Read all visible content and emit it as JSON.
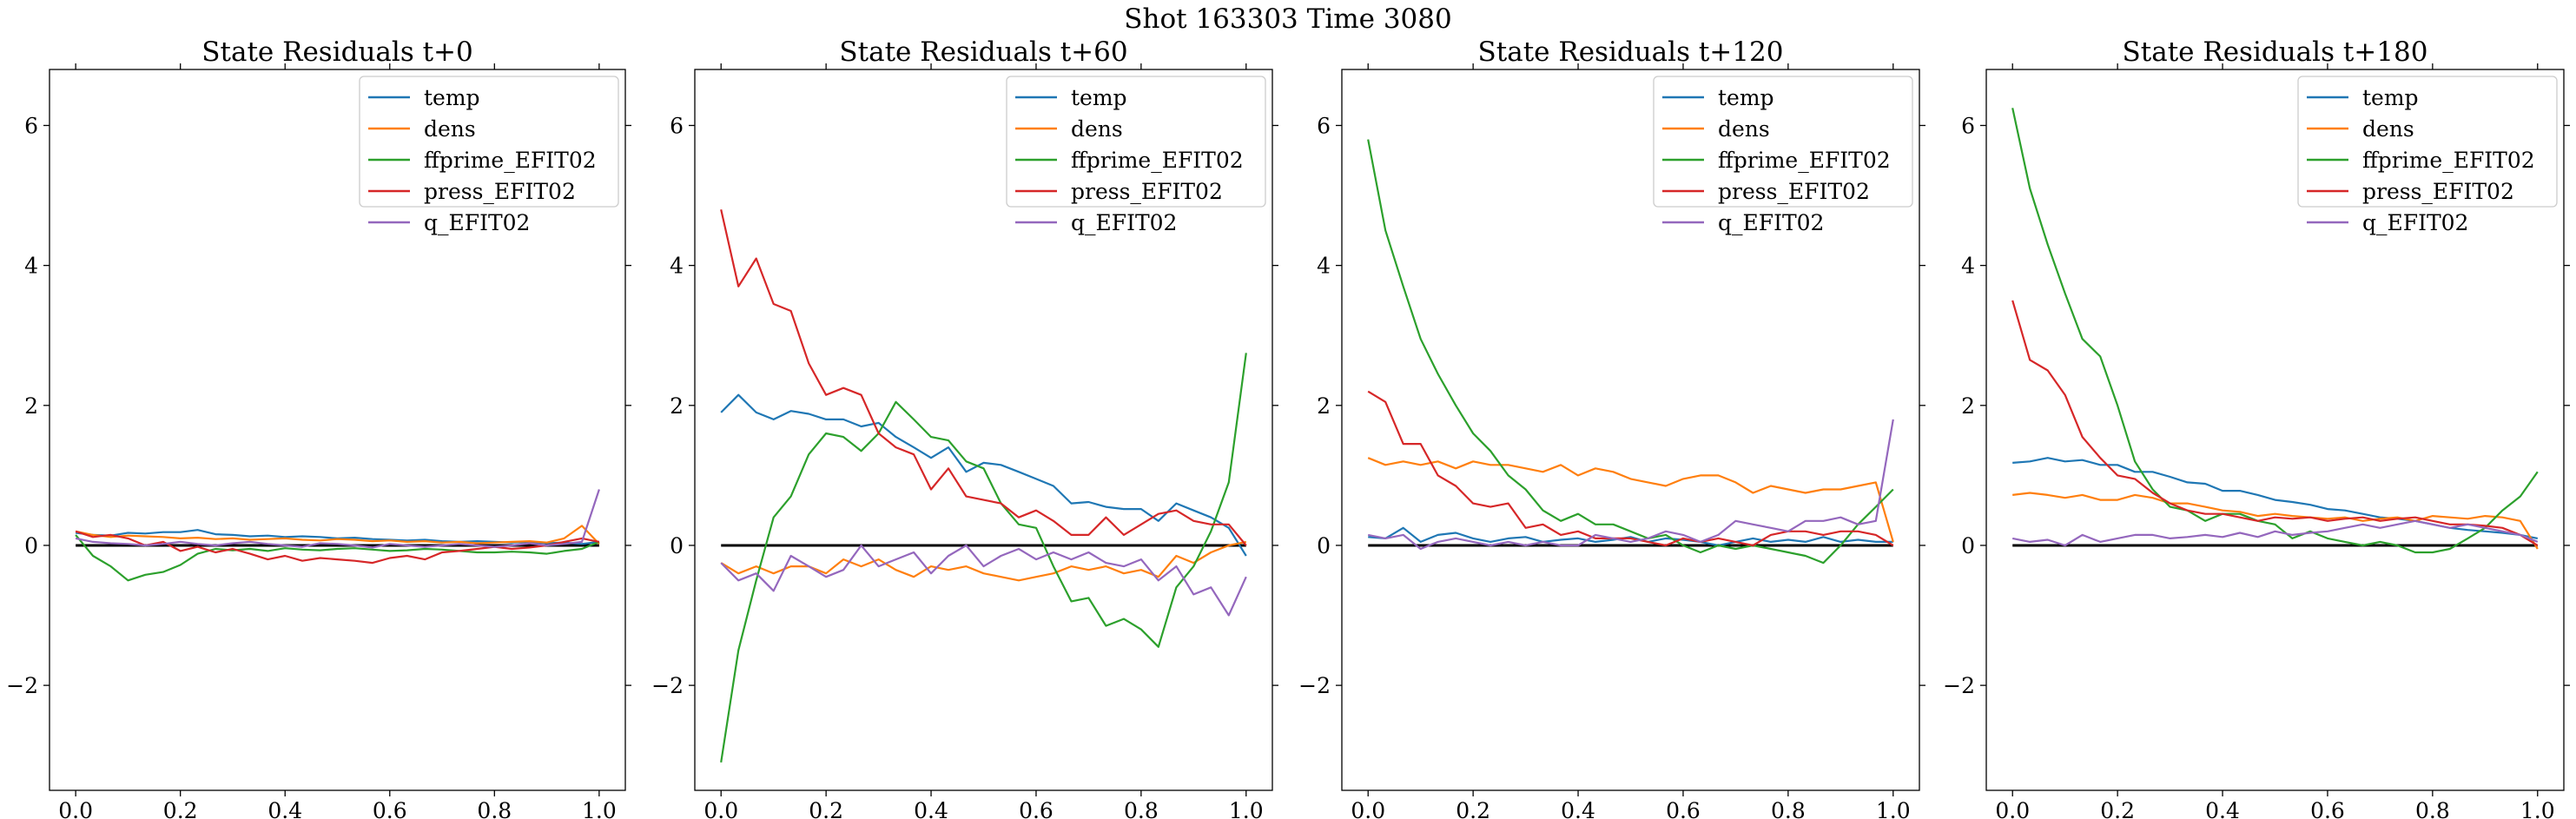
{
  "figure": {
    "suptitle": "Shot 163303   Time 3080"
  },
  "chart_data": [
    {
      "type": "line",
      "title": "State Residuals t+0",
      "xlabel": "",
      "ylabel": "",
      "xlim": [
        -0.05,
        1.05
      ],
      "ylim": [
        -3.5,
        6.8
      ],
      "xticks": [
        0.0,
        0.2,
        0.4,
        0.6,
        0.8,
        1.0
      ],
      "xtick_labels": [
        "0.0",
        "0.2",
        "0.4",
        "0.6",
        "0.8",
        "1.0"
      ],
      "yticks": [
        -2,
        0,
        2,
        4,
        6
      ],
      "ytick_labels": [
        "−2",
        "0",
        "2",
        "4",
        "6"
      ],
      "grid": false,
      "legend": "top-right",
      "zero_line": true,
      "x": [
        0.0,
        0.033,
        0.067,
        0.1,
        0.133,
        0.167,
        0.2,
        0.233,
        0.267,
        0.3,
        0.333,
        0.367,
        0.4,
        0.433,
        0.467,
        0.5,
        0.533,
        0.567,
        0.6,
        0.633,
        0.667,
        0.7,
        0.733,
        0.767,
        0.8,
        0.833,
        0.867,
        0.9,
        0.933,
        0.967,
        1.0
      ],
      "series": [
        {
          "name": "temp",
          "color": "#1f77b4",
          "values": [
            0.18,
            0.15,
            0.14,
            0.18,
            0.17,
            0.19,
            0.19,
            0.22,
            0.16,
            0.15,
            0.13,
            0.14,
            0.12,
            0.13,
            0.12,
            0.1,
            0.11,
            0.09,
            0.08,
            0.07,
            0.08,
            0.06,
            0.05,
            0.06,
            0.05,
            0.04,
            0.05,
            0.03,
            0.04,
            0.02,
            0.05
          ]
        },
        {
          "name": "dens",
          "color": "#ff7f0e",
          "values": [
            0.2,
            0.15,
            0.12,
            0.14,
            0.13,
            0.12,
            0.1,
            0.11,
            0.09,
            0.1,
            0.08,
            0.09,
            0.1,
            0.08,
            0.07,
            0.09,
            0.08,
            0.06,
            0.07,
            0.05,
            0.06,
            0.04,
            0.05,
            0.03,
            0.04,
            0.05,
            0.06,
            0.04,
            0.1,
            0.28,
            0.02
          ]
        },
        {
          "name": "ffprime_EFIT02",
          "color": "#2ca02c",
          "values": [
            0.15,
            -0.15,
            -0.3,
            -0.5,
            -0.42,
            -0.38,
            -0.28,
            -0.12,
            -0.05,
            -0.07,
            -0.05,
            -0.08,
            -0.04,
            -0.06,
            -0.07,
            -0.05,
            -0.04,
            -0.06,
            -0.08,
            -0.07,
            -0.05,
            -0.06,
            -0.08,
            -0.1,
            -0.1,
            -0.09,
            -0.1,
            -0.12,
            -0.08,
            -0.05,
            0.05
          ]
        },
        {
          "name": "press_EFIT02",
          "color": "#d62728",
          "values": [
            0.2,
            0.12,
            0.15,
            0.1,
            0.0,
            0.05,
            -0.08,
            -0.02,
            -0.1,
            -0.05,
            -0.12,
            -0.2,
            -0.15,
            -0.22,
            -0.18,
            -0.2,
            -0.22,
            -0.25,
            -0.18,
            -0.15,
            -0.2,
            -0.1,
            -0.08,
            -0.05,
            -0.02,
            -0.05,
            -0.03,
            0.0,
            0.05,
            0.1,
            0.05
          ]
        },
        {
          "name": "q_EFIT02",
          "color": "#9467bd",
          "values": [
            0.1,
            0.05,
            0.03,
            0.02,
            0.0,
            0.02,
            0.05,
            0.02,
            0.0,
            0.03,
            0.05,
            0.02,
            0.0,
            -0.02,
            0.03,
            0.02,
            0.0,
            -0.03,
            0.02,
            0.0,
            -0.02,
            0.0,
            0.02,
            0.0,
            -0.02,
            0.0,
            0.03,
            0.0,
            0.02,
            0.05,
            0.8
          ]
        }
      ]
    },
    {
      "type": "line",
      "title": "State Residuals t+60",
      "xlabel": "",
      "ylabel": "",
      "xlim": [
        -0.05,
        1.05
      ],
      "ylim": [
        -3.5,
        6.8
      ],
      "xticks": [
        0.0,
        0.2,
        0.4,
        0.6,
        0.8,
        1.0
      ],
      "xtick_labels": [
        "0.0",
        "0.2",
        "0.4",
        "0.6",
        "0.8",
        "1.0"
      ],
      "yticks": [
        -2,
        0,
        2,
        4,
        6
      ],
      "ytick_labels": [
        "−2",
        "0",
        "2",
        "4",
        "6"
      ],
      "grid": false,
      "legend": "top-right",
      "zero_line": true,
      "x": [
        0.0,
        0.033,
        0.067,
        0.1,
        0.133,
        0.167,
        0.2,
        0.233,
        0.267,
        0.3,
        0.333,
        0.367,
        0.4,
        0.433,
        0.467,
        0.5,
        0.533,
        0.567,
        0.6,
        0.633,
        0.667,
        0.7,
        0.733,
        0.767,
        0.8,
        0.833,
        0.867,
        0.9,
        0.933,
        0.967,
        1.0
      ],
      "series": [
        {
          "name": "temp",
          "color": "#1f77b4",
          "values": [
            1.9,
            2.15,
            1.9,
            1.8,
            1.92,
            1.88,
            1.8,
            1.8,
            1.7,
            1.75,
            1.55,
            1.4,
            1.25,
            1.4,
            1.05,
            1.18,
            1.15,
            1.05,
            0.95,
            0.85,
            0.6,
            0.62,
            0.55,
            0.52,
            0.52,
            0.35,
            0.6,
            0.5,
            0.4,
            0.25,
            -0.15
          ]
        },
        {
          "name": "dens",
          "color": "#ff7f0e",
          "values": [
            -0.25,
            -0.4,
            -0.3,
            -0.4,
            -0.3,
            -0.3,
            -0.4,
            -0.2,
            -0.3,
            -0.2,
            -0.35,
            -0.45,
            -0.3,
            -0.35,
            -0.3,
            -0.4,
            -0.45,
            -0.5,
            -0.45,
            -0.4,
            -0.3,
            -0.35,
            -0.3,
            -0.4,
            -0.35,
            -0.45,
            -0.15,
            -0.25,
            -0.1,
            0.0,
            0.05
          ]
        },
        {
          "name": "ffprime_EFIT02",
          "color": "#2ca02c",
          "values": [
            -3.1,
            -1.5,
            -0.5,
            0.4,
            0.7,
            1.3,
            1.6,
            1.55,
            1.35,
            1.6,
            2.05,
            1.8,
            1.55,
            1.5,
            1.2,
            1.1,
            0.6,
            0.3,
            0.25,
            -0.3,
            -0.8,
            -0.75,
            -1.15,
            -1.05,
            -1.2,
            -1.45,
            -0.6,
            -0.3,
            0.2,
            0.9,
            2.75
          ]
        },
        {
          "name": "press_EFIT02",
          "color": "#d62728",
          "values": [
            4.8,
            3.7,
            4.1,
            3.45,
            3.35,
            2.6,
            2.15,
            2.25,
            2.15,
            1.6,
            1.4,
            1.3,
            0.8,
            1.1,
            0.7,
            0.65,
            0.6,
            0.4,
            0.5,
            0.35,
            0.15,
            0.15,
            0.4,
            0.15,
            0.3,
            0.45,
            0.5,
            0.35,
            0.3,
            0.3,
            0.0
          ]
        },
        {
          "name": "q_EFIT02",
          "color": "#9467bd",
          "values": [
            -0.25,
            -0.5,
            -0.4,
            -0.65,
            -0.15,
            -0.3,
            -0.45,
            -0.35,
            0.0,
            -0.3,
            -0.2,
            -0.1,
            -0.4,
            -0.15,
            0.0,
            -0.3,
            -0.15,
            -0.05,
            -0.2,
            -0.1,
            -0.2,
            -0.1,
            -0.25,
            -0.3,
            -0.2,
            -0.5,
            -0.3,
            -0.7,
            -0.6,
            -1.0,
            -0.45
          ]
        }
      ]
    },
    {
      "type": "line",
      "title": "State Residuals t+120",
      "xlabel": "",
      "ylabel": "",
      "xlim": [
        -0.05,
        1.05
      ],
      "ylim": [
        -3.5,
        6.8
      ],
      "xticks": [
        0.0,
        0.2,
        0.4,
        0.6,
        0.8,
        1.0
      ],
      "xtick_labels": [
        "0.0",
        "0.2",
        "0.4",
        "0.6",
        "0.8",
        "1.0"
      ],
      "yticks": [
        -2,
        0,
        2,
        4,
        6
      ],
      "ytick_labels": [
        "−2",
        "0",
        "2",
        "4",
        "6"
      ],
      "grid": false,
      "legend": "top-right",
      "zero_line": true,
      "x": [
        0.0,
        0.033,
        0.067,
        0.1,
        0.133,
        0.167,
        0.2,
        0.233,
        0.267,
        0.3,
        0.333,
        0.367,
        0.4,
        0.433,
        0.467,
        0.5,
        0.533,
        0.567,
        0.6,
        0.633,
        0.667,
        0.7,
        0.733,
        0.767,
        0.8,
        0.833,
        0.867,
        0.9,
        0.933,
        0.967,
        1.0
      ],
      "series": [
        {
          "name": "temp",
          "color": "#1f77b4",
          "values": [
            0.12,
            0.1,
            0.25,
            0.05,
            0.15,
            0.18,
            0.1,
            0.05,
            0.1,
            0.12,
            0.05,
            0.08,
            0.1,
            0.05,
            0.08,
            0.12,
            0.05,
            0.1,
            0.08,
            0.05,
            0.0,
            0.05,
            0.1,
            0.05,
            0.08,
            0.05,
            0.12,
            0.05,
            0.08,
            0.05,
            0.05
          ]
        },
        {
          "name": "dens",
          "color": "#ff7f0e",
          "values": [
            1.25,
            1.15,
            1.2,
            1.15,
            1.2,
            1.1,
            1.2,
            1.15,
            1.15,
            1.1,
            1.05,
            1.15,
            1.0,
            1.1,
            1.05,
            0.95,
            0.9,
            0.85,
            0.95,
            1.0,
            1.0,
            0.9,
            0.75,
            0.85,
            0.8,
            0.75,
            0.8,
            0.8,
            0.85,
            0.9,
            0.05
          ]
        },
        {
          "name": "ffprime_EFIT02",
          "color": "#2ca02c",
          "values": [
            5.8,
            4.5,
            3.7,
            2.95,
            2.45,
            2.0,
            1.6,
            1.35,
            1.0,
            0.8,
            0.5,
            0.35,
            0.45,
            0.3,
            0.3,
            0.2,
            0.1,
            0.15,
            0.0,
            -0.1,
            0.0,
            -0.05,
            0.0,
            -0.05,
            -0.1,
            -0.15,
            -0.25,
            0.0,
            0.3,
            0.55,
            0.8
          ]
        },
        {
          "name": "press_EFIT02",
          "color": "#d62728",
          "values": [
            2.2,
            2.05,
            1.45,
            1.45,
            1.0,
            0.85,
            0.6,
            0.55,
            0.6,
            0.25,
            0.3,
            0.15,
            0.2,
            0.1,
            0.1,
            0.1,
            0.05,
            0.0,
            0.1,
            0.05,
            0.1,
            0.05,
            0.0,
            0.15,
            0.2,
            0.2,
            0.15,
            0.2,
            0.2,
            0.15,
            0.0
          ]
        },
        {
          "name": "q_EFIT02",
          "color": "#9467bd",
          "values": [
            0.15,
            0.1,
            0.15,
            -0.05,
            0.05,
            0.1,
            0.05,
            0.0,
            0.05,
            0.0,
            0.05,
            0.0,
            0.0,
            0.15,
            0.1,
            0.05,
            0.1,
            0.2,
            0.15,
            0.05,
            0.15,
            0.35,
            0.3,
            0.25,
            0.2,
            0.35,
            0.35,
            0.4,
            0.3,
            0.35,
            1.8
          ]
        }
      ]
    },
    {
      "type": "line",
      "title": "State Residuals t+180",
      "xlabel": "",
      "ylabel": "",
      "xlim": [
        -0.05,
        1.05
      ],
      "ylim": [
        -3.5,
        6.8
      ],
      "xticks": [
        0.0,
        0.2,
        0.4,
        0.6,
        0.8,
        1.0
      ],
      "xtick_labels": [
        "0.0",
        "0.2",
        "0.4",
        "0.6",
        "0.8",
        "1.0"
      ],
      "yticks": [
        -2,
        0,
        2,
        4,
        6
      ],
      "ytick_labels": [
        "−2",
        "0",
        "2",
        "4",
        "6"
      ],
      "grid": false,
      "legend": "top-right",
      "zero_line": true,
      "x": [
        0.0,
        0.033,
        0.067,
        0.1,
        0.133,
        0.167,
        0.2,
        0.233,
        0.267,
        0.3,
        0.333,
        0.367,
        0.4,
        0.433,
        0.467,
        0.5,
        0.533,
        0.567,
        0.6,
        0.633,
        0.667,
        0.7,
        0.733,
        0.767,
        0.8,
        0.833,
        0.867,
        0.9,
        0.933,
        0.967,
        1.0
      ],
      "series": [
        {
          "name": "temp",
          "color": "#1f77b4",
          "values": [
            1.18,
            1.2,
            1.25,
            1.2,
            1.22,
            1.15,
            1.15,
            1.05,
            1.05,
            0.98,
            0.9,
            0.88,
            0.78,
            0.78,
            0.72,
            0.65,
            0.62,
            0.58,
            0.52,
            0.5,
            0.45,
            0.4,
            0.38,
            0.35,
            0.3,
            0.25,
            0.22,
            0.2,
            0.18,
            0.15,
            0.1
          ]
        },
        {
          "name": "dens",
          "color": "#ff7f0e",
          "values": [
            0.72,
            0.75,
            0.72,
            0.68,
            0.72,
            0.65,
            0.65,
            0.72,
            0.68,
            0.6,
            0.6,
            0.55,
            0.5,
            0.48,
            0.42,
            0.45,
            0.42,
            0.4,
            0.38,
            0.4,
            0.35,
            0.38,
            0.4,
            0.35,
            0.42,
            0.4,
            0.38,
            0.42,
            0.4,
            0.35,
            -0.05
          ]
        },
        {
          "name": "ffprime_EFIT02",
          "color": "#2ca02c",
          "values": [
            6.25,
            5.1,
            4.3,
            3.6,
            2.95,
            2.7,
            2.0,
            1.2,
            0.8,
            0.55,
            0.5,
            0.35,
            0.45,
            0.45,
            0.35,
            0.3,
            0.1,
            0.2,
            0.1,
            0.05,
            0.0,
            0.05,
            0.0,
            -0.1,
            -0.1,
            -0.05,
            0.1,
            0.25,
            0.5,
            0.7,
            1.05
          ]
        },
        {
          "name": "press_EFIT02",
          "color": "#d62728",
          "values": [
            3.5,
            2.65,
            2.5,
            2.15,
            1.55,
            1.25,
            1.0,
            0.95,
            0.75,
            0.6,
            0.5,
            0.45,
            0.45,
            0.4,
            0.35,
            0.4,
            0.38,
            0.4,
            0.35,
            0.38,
            0.4,
            0.35,
            0.38,
            0.4,
            0.35,
            0.3,
            0.3,
            0.28,
            0.25,
            0.15,
            0.0
          ]
        },
        {
          "name": "q_EFIT02",
          "color": "#9467bd",
          "values": [
            0.1,
            0.05,
            0.08,
            0.0,
            0.15,
            0.05,
            0.1,
            0.15,
            0.15,
            0.1,
            0.12,
            0.15,
            0.12,
            0.18,
            0.12,
            0.2,
            0.15,
            0.18,
            0.2,
            0.25,
            0.3,
            0.25,
            0.3,
            0.35,
            0.3,
            0.25,
            0.3,
            0.25,
            0.2,
            0.15,
            0.05
          ]
        }
      ]
    }
  ]
}
